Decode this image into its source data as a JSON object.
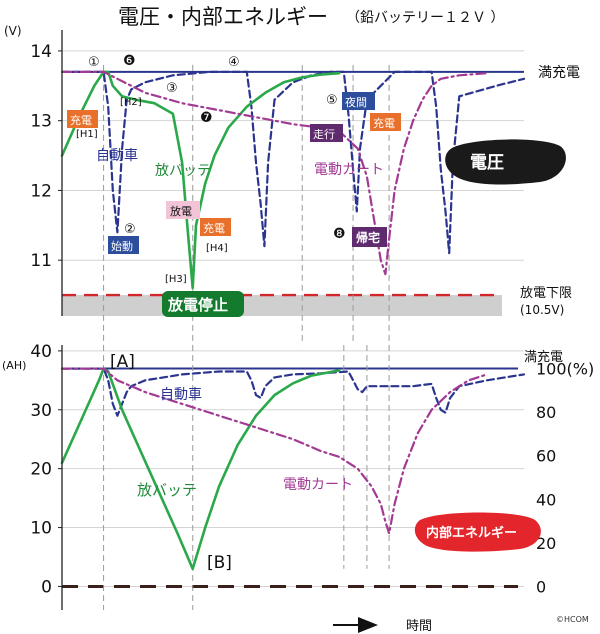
{
  "title": "電圧・内部エネルギー",
  "subtitle": "（鉛バッテリー１２Ｖ ）",
  "copyright": "©HCOM",
  "time_label": "時間",
  "colors": {
    "green": "#2aa84a",
    "blue": "#2b3590",
    "purple": "#a23a93",
    "pink": "#c0287e",
    "red": "#d1262a",
    "grid": "#d4d4d4",
    "band": "#cfcfcf",
    "tag_orange": "#e8702a",
    "tag_blue": "#2c4e9c",
    "tag_purple": "#5f2a6e",
    "tag_pink": "#f3c4d8",
    "dark_green": "#137a2e"
  },
  "chart_data": [
    {
      "type": "line",
      "panel": "voltage",
      "ylabel": "(V)",
      "ylim": [
        10.2,
        14.3
      ],
      "yticks": [
        11,
        12,
        13,
        14
      ],
      "ytick_labels": [
        "11",
        "12",
        "13",
        "14"
      ],
      "xlim": [
        0,
        100
      ],
      "grid": true,
      "reference_lines": [
        {
          "name": "full-charge",
          "label": "満充電",
          "y": 13.7
        },
        {
          "name": "discharge-limit",
          "label": "放電下限",
          "label2": "(10.5V)",
          "y": 10.5
        }
      ],
      "series": [
        {
          "name": "自動車",
          "style": "dashed",
          "color": "#2b3590",
          "x": [
            0,
            6,
            9,
            10,
            11,
            12,
            13,
            14,
            15,
            18,
            24,
            32,
            40,
            41,
            42,
            43,
            43.8,
            44.6,
            46,
            50,
            54,
            58,
            61,
            62,
            63,
            63.8,
            64.5,
            66,
            72,
            78,
            80,
            81,
            82,
            83,
            83.8,
            84.6,
            86,
            94,
            100
          ],
          "y": [
            13.7,
            13.7,
            13.7,
            13.2,
            12.0,
            11.4,
            12.6,
            13.3,
            13.45,
            13.55,
            13.65,
            13.7,
            13.7,
            13.2,
            12.4,
            11.8,
            11.2,
            12.4,
            13.3,
            13.55,
            13.65,
            13.7,
            13.7,
            13.1,
            12.3,
            11.7,
            12.6,
            13.3,
            13.7,
            13.7,
            13.7,
            13.2,
            12.3,
            11.7,
            11.1,
            12.4,
            13.35,
            13.5,
            13.6
          ]
        },
        {
          "name": "放バッテ",
          "style": "solid",
          "color": "#2aa84a",
          "x": [
            0,
            4,
            7,
            9,
            10,
            11,
            13,
            16,
            20,
            24,
            26,
            27,
            28.3,
            29,
            31,
            33,
            36,
            40,
            44,
            48,
            52,
            56,
            60
          ],
          "y": [
            12.5,
            13.1,
            13.5,
            13.7,
            13.7,
            13.5,
            13.35,
            13.3,
            13.25,
            13.1,
            12.4,
            11.6,
            10.6,
            11.5,
            12.1,
            12.5,
            12.9,
            13.2,
            13.4,
            13.55,
            13.62,
            13.66,
            13.68
          ]
        },
        {
          "name": "電動カート",
          "style": "dashdot",
          "color": "#a23a93",
          "x": [
            0,
            6,
            9,
            12,
            18,
            26,
            34,
            42,
            50,
            56,
            60,
            64,
            66,
            67,
            68,
            69,
            70,
            70.8,
            72,
            74,
            76,
            78,
            80,
            82,
            86,
            92
          ],
          "y": [
            13.7,
            13.7,
            13.7,
            13.6,
            13.4,
            13.25,
            13.15,
            13.05,
            12.95,
            12.9,
            12.85,
            12.6,
            12.2,
            11.8,
            11.4,
            11.0,
            10.8,
            11.3,
            12.0,
            12.6,
            13.0,
            13.3,
            13.5,
            13.6,
            13.65,
            13.68
          ]
        }
      ]
    },
    {
      "type": "line",
      "panel": "internal-energy",
      "ylabel": "(AH)",
      "ylim": [
        -4,
        41
      ],
      "yticks": [
        0,
        10,
        20,
        30,
        40
      ],
      "ytick_labels": [
        "0",
        "10",
        "20",
        "30",
        "40"
      ],
      "y2_ticks": [
        "0",
        "20",
        "40",
        "60",
        "80",
        "100(%)"
      ],
      "xlim": [
        0,
        100
      ],
      "grid": true,
      "reference_lines": [
        {
          "name": "full-charge",
          "label": "満充電",
          "y": 37
        },
        {
          "name": "zero",
          "label": "",
          "y": 0
        }
      ],
      "series": [
        {
          "name": "自動車",
          "style": "dashed",
          "color": "#2b3590",
          "x": [
            0,
            8,
            9,
            10,
            11,
            12,
            13,
            14,
            15,
            18,
            26,
            34,
            38,
            40,
            41,
            42,
            43,
            44,
            46,
            50,
            56,
            60,
            62,
            63,
            64,
            65,
            66,
            70,
            76,
            78,
            80,
            81,
            82,
            83,
            84,
            86,
            92,
            100
          ],
          "y": [
            37,
            37,
            37,
            35,
            31,
            29,
            31,
            33,
            34,
            35,
            36,
            36.5,
            36.5,
            36.5,
            35,
            32.5,
            32,
            34,
            35.5,
            36,
            36.2,
            36.4,
            36.5,
            35,
            33.5,
            33,
            34,
            34,
            34,
            34.2,
            34.4,
            32,
            30,
            29.5,
            32,
            34,
            35,
            36
          ]
        },
        {
          "name": "放バッテ",
          "style": "solid",
          "color": "#2aa84a",
          "x": [
            0,
            4,
            8,
            9,
            10,
            13,
            17,
            21,
            25,
            28.3,
            31,
            34,
            38,
            42,
            46,
            50,
            54,
            58,
            60
          ],
          "y": [
            21,
            28,
            35,
            37,
            36.5,
            30,
            23,
            16,
            9,
            3,
            10,
            17,
            24,
            29,
            32.5,
            34.5,
            35.8,
            36.4,
            36.7
          ]
        },
        {
          "name": "電動カート",
          "style": "dashdot",
          "color": "#a23a93",
          "x": [
            0,
            6,
            9,
            12,
            18,
            26,
            34,
            42,
            50,
            56,
            60,
            64,
            67,
            69,
            70,
            70.8,
            72,
            74,
            77,
            80,
            84,
            88,
            92
          ],
          "y": [
            37,
            37,
            37,
            35,
            33,
            31,
            29,
            27,
            25,
            23,
            22,
            20,
            17,
            14,
            11,
            9,
            14,
            20,
            26,
            30,
            33,
            35,
            36
          ]
        }
      ]
    }
  ],
  "voltage_labels": {
    "car": "自動車",
    "battery": "放バッテ",
    "cart": "電動カート",
    "box": "電圧",
    "full": "満充電",
    "limit": "放電下限",
    "limit_value": "(10.5V)",
    "stop": "放電停止"
  },
  "energy_labels": {
    "A": "[A]",
    "B": "[B]",
    "car": "自動車",
    "battery": "放バッテ",
    "cart": "電動カート",
    "box": "内部エネルギー",
    "full": "満充電"
  },
  "markers": {
    "n1": "①",
    "n2": "②",
    "n3": "③",
    "n4": "④",
    "n5": "⑤",
    "n6": "❻",
    "n7": "❼",
    "n8": "❽",
    "H1": "[H1]",
    "H2": "[H2]",
    "H3": "[H3]",
    "H4": "[H4]"
  },
  "tags": {
    "charge": "充電",
    "discharge": "放電",
    "start": "始動",
    "night": "夜間",
    "drive": "走行",
    "home": "帰宅"
  }
}
